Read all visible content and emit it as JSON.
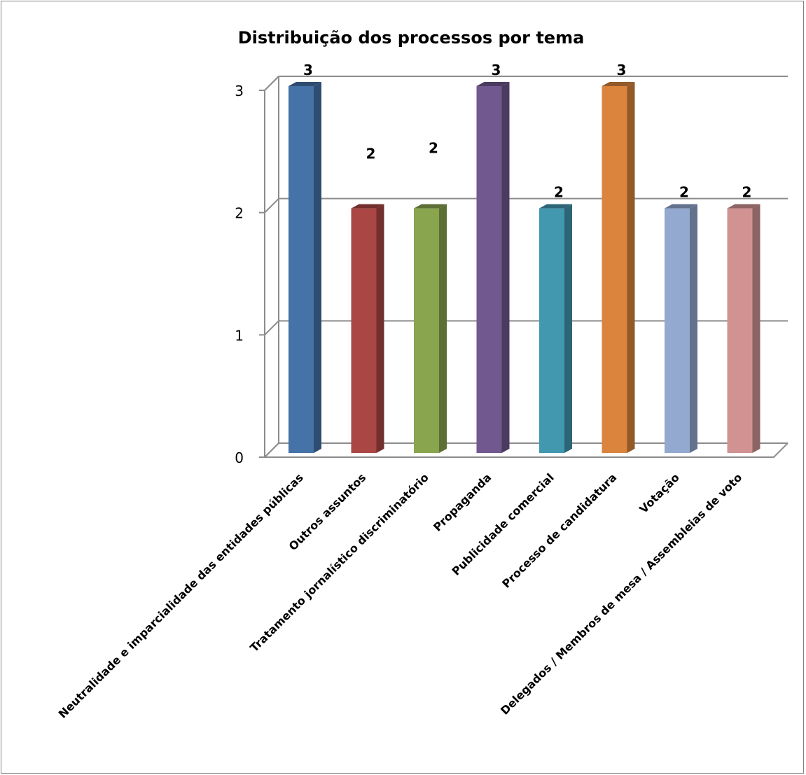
{
  "chart_data": {
    "type": "bar",
    "title": "Distribuição dos processos por tema",
    "xlabel": "",
    "ylabel": "",
    "ylim": [
      0,
      3
    ],
    "yticks": [
      "0",
      "1",
      "2",
      "3"
    ],
    "grid": true,
    "legend": "none",
    "categories": [
      "Neutralidade e imparcialidade das entidades públicas",
      "Outros assuntos",
      "Tratamento jornalístico discriminatório",
      "Propaganda",
      "Publicidade comercial",
      "Processo de candidatura",
      "Votação",
      "Delegados / Membros de mesa / Assembleias de voto"
    ],
    "values": [
      3,
      2,
      2,
      3,
      2,
      3,
      2,
      2
    ],
    "data_labels": [
      "3",
      "2",
      "2",
      "3",
      "2",
      "3",
      "2",
      "2"
    ],
    "colors": [
      "#4572a7",
      "#aa4643",
      "#89a54e",
      "#71588f",
      "#4198af",
      "#db843d",
      "#93a9cf",
      "#d19392"
    ],
    "side_colors": [
      "#2f4d72",
      "#722f2d",
      "#5c6f34",
      "#4c3b60",
      "#2c6676",
      "#935929",
      "#63728c",
      "#8d6363"
    ]
  }
}
